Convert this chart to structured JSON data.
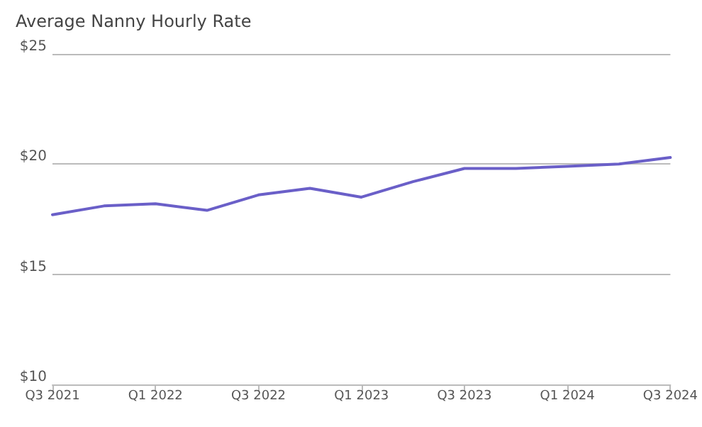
{
  "chart_data": {
    "type": "line",
    "title": "Average Nanny Hourly Rate",
    "categories": [
      "Q3 2021",
      null,
      "Q1 2022",
      null,
      "Q3 2022",
      null,
      "Q1 2023",
      null,
      "Q3 2023",
      null,
      "Q1 2024",
      null,
      "Q3 2024"
    ],
    "series": [
      {
        "color": "#6a5fc8",
        "values": [
          17.7,
          18.1,
          18.2,
          17.9,
          18.6,
          18.9,
          18.5,
          19.2,
          19.8,
          19.8,
          19.9,
          20.0,
          20.3
        ]
      }
    ],
    "ylim": [
      10,
      25
    ],
    "yticks": [
      {
        "value": 10,
        "label": "$10"
      },
      {
        "value": 15,
        "label": "$15"
      },
      {
        "value": 20,
        "label": "$20"
      },
      {
        "value": 25,
        "label": "$25"
      }
    ],
    "grid": "y",
    "marker": "none",
    "line_style": "solid"
  }
}
